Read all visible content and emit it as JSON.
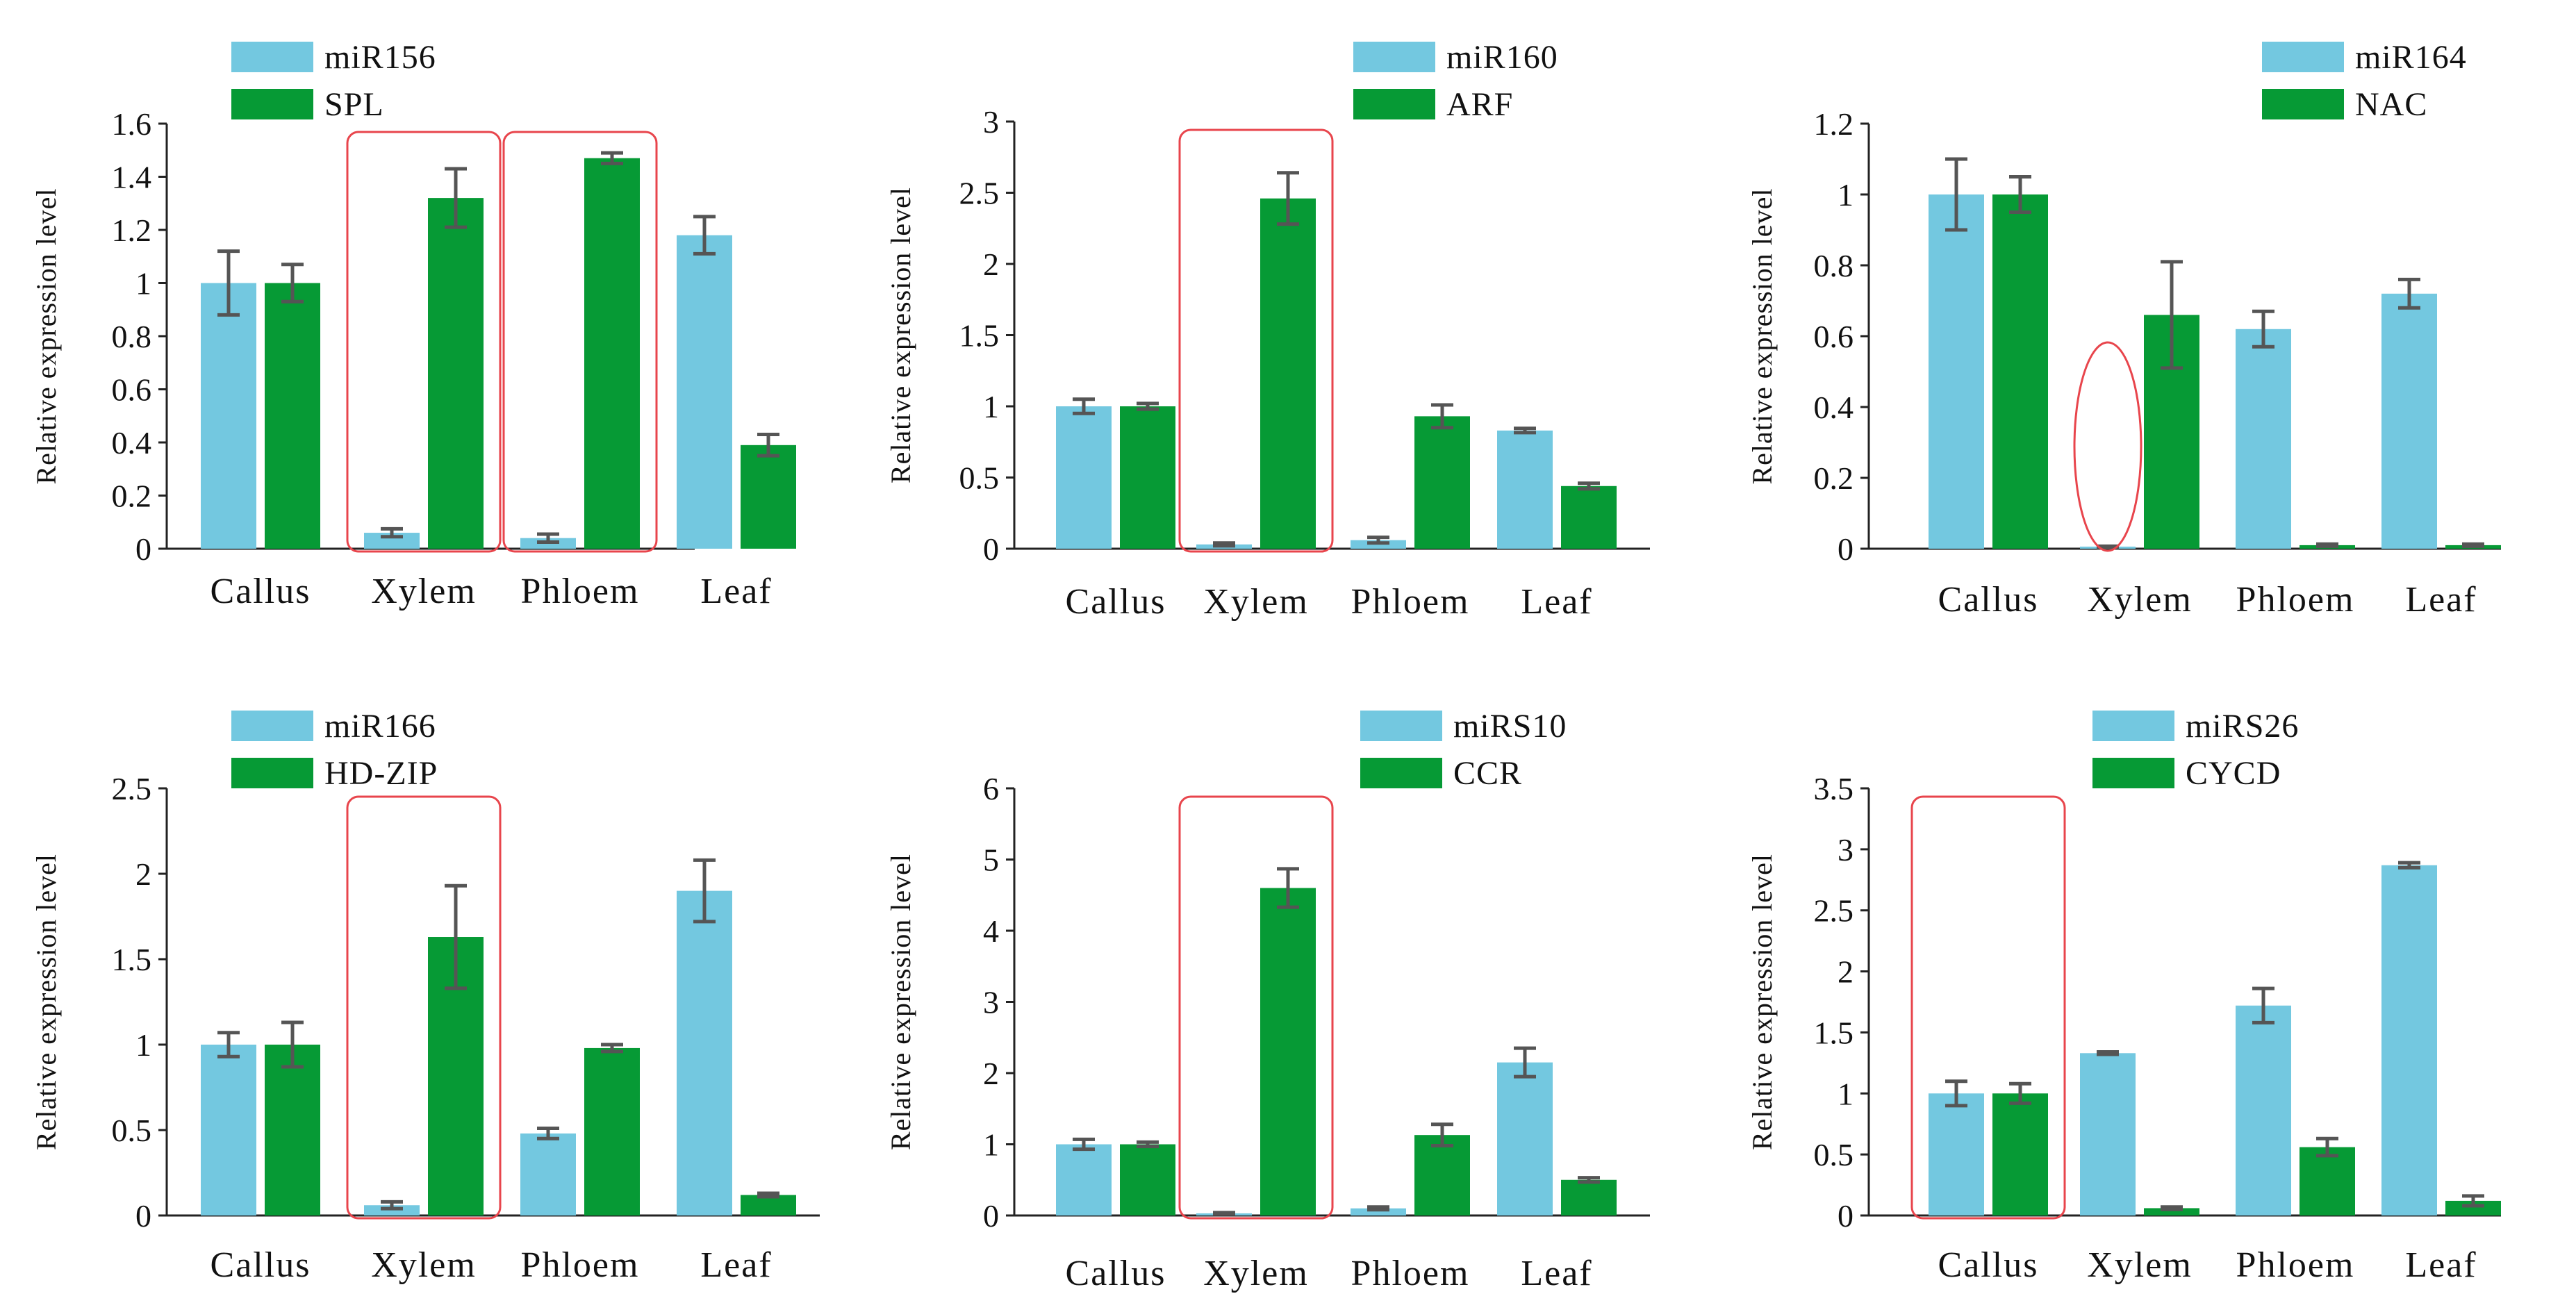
{
  "figure": {
    "description_type": "grouped bar charts with error bars (miRNA vs target gene expression)",
    "colors": {
      "mirna": "#73C8E0",
      "target": "#069A35",
      "error": "#555555",
      "highlight": "#E8454C",
      "axis": "#222222"
    }
  },
  "chart_data": [
    {
      "type": "bar",
      "id": "p1",
      "categories": [
        "Callus",
        "Xylem",
        "Phloem",
        "Leaf"
      ],
      "ylabel": "Relative expression level",
      "ylim": [
        0,
        1.6
      ],
      "yticks": [
        0,
        0.2,
        0.4,
        0.6,
        0.8,
        1,
        1.2,
        1.4,
        1.6
      ],
      "ytick_labels": [
        "0",
        "0.2",
        "0.4",
        "0.6",
        "0.8",
        "1",
        "1.2",
        "1.4",
        "1.6"
      ],
      "series": [
        {
          "name": "miR156",
          "color": "#73C8E0",
          "values": [
            1.0,
            0.06,
            0.04,
            1.18
          ],
          "errors": [
            0.12,
            0.015,
            0.015,
            0.07
          ]
        },
        {
          "name": "SPL",
          "color": "#069A35",
          "values": [
            1.0,
            1.32,
            1.47,
            0.39
          ],
          "errors": [
            0.07,
            0.11,
            0.02,
            0.04
          ]
        }
      ],
      "highlights": [
        {
          "category": "Xylem",
          "shape": "rect"
        },
        {
          "category": "Phloem",
          "shape": "rect"
        }
      ]
    },
    {
      "type": "bar",
      "id": "p2",
      "categories": [
        "Callus",
        "Xylem",
        "Phloem",
        "Leaf"
      ],
      "ylabel": "Relative expression level",
      "ylim": [
        0,
        3
      ],
      "yticks": [
        0,
        0.5,
        1,
        1.5,
        2,
        2.5,
        3
      ],
      "ytick_labels": [
        "0",
        "0.5",
        "1",
        "1.5",
        "2",
        "2.5",
        "3"
      ],
      "series": [
        {
          "name": "miR160",
          "color": "#73C8E0",
          "values": [
            1.0,
            0.03,
            0.06,
            0.83
          ],
          "errors": [
            0.05,
            0.01,
            0.02,
            0.015
          ]
        },
        {
          "name": "ARF",
          "color": "#069A35",
          "values": [
            1.0,
            2.46,
            0.93,
            0.44
          ],
          "errors": [
            0.02,
            0.18,
            0.08,
            0.02
          ]
        }
      ],
      "highlights": [
        {
          "category": "Xylem",
          "shape": "rect"
        }
      ]
    },
    {
      "type": "bar",
      "id": "p3",
      "categories": [
        "Callus",
        "Xylem",
        "Phloem",
        "Leaf"
      ],
      "ylabel": "Relative expression level",
      "ylim": [
        0,
        1.2
      ],
      "yticks": [
        0,
        0.2,
        0.4,
        0.6,
        0.8,
        1,
        1.2
      ],
      "ytick_labels": [
        "0",
        "0.2",
        "0.4",
        "0.6",
        "0.8",
        "1",
        "1.2"
      ],
      "series": [
        {
          "name": "miR164",
          "color": "#73C8E0",
          "values": [
            1.0,
            0.005,
            0.62,
            0.72
          ],
          "errors": [
            0.1,
            0.002,
            0.05,
            0.04
          ]
        },
        {
          "name": "NAC",
          "color": "#069A35",
          "values": [
            1.0,
            0.66,
            0.01,
            0.01
          ],
          "errors": [
            0.05,
            0.15,
            0.003,
            0.003
          ]
        }
      ],
      "highlights": [
        {
          "category": "Xylem",
          "shape": "ellipse",
          "target": "first"
        }
      ]
    },
    {
      "type": "bar",
      "id": "p4",
      "categories": [
        "Callus",
        "Xylem",
        "Phloem",
        "Leaf"
      ],
      "ylabel": "Relative expression level",
      "ylim": [
        0,
        2.5
      ],
      "yticks": [
        0,
        0.5,
        1,
        1.5,
        2,
        2.5
      ],
      "ytick_labels": [
        "0",
        "0.5",
        "1",
        "1.5",
        "2",
        "2.5"
      ],
      "series": [
        {
          "name": "miR166",
          "color": "#73C8E0",
          "values": [
            1.0,
            0.06,
            0.48,
            1.9
          ],
          "errors": [
            0.07,
            0.02,
            0.03,
            0.18
          ]
        },
        {
          "name": "HD-ZIP",
          "color": "#069A35",
          "values": [
            1.0,
            1.63,
            0.98,
            0.12
          ],
          "errors": [
            0.13,
            0.3,
            0.02,
            0.01
          ]
        }
      ],
      "highlights": [
        {
          "category": "Xylem",
          "shape": "rect"
        }
      ]
    },
    {
      "type": "bar",
      "id": "p5",
      "categories": [
        "Callus",
        "Xylem",
        "Phloem",
        "Leaf"
      ],
      "ylabel": "Relative expression level",
      "ylim": [
        0,
        6
      ],
      "yticks": [
        0,
        1,
        2,
        3,
        4,
        5,
        6
      ],
      "ytick_labels": [
        "0",
        "1",
        "2",
        "3",
        "4",
        "5",
        "6"
      ],
      "series": [
        {
          "name": "miRS10",
          "color": "#73C8E0",
          "values": [
            1.0,
            0.03,
            0.1,
            2.15
          ],
          "errors": [
            0.07,
            0.01,
            0.02,
            0.2
          ]
        },
        {
          "name": "CCR",
          "color": "#069A35",
          "values": [
            1.0,
            4.6,
            1.13,
            0.5
          ],
          "errors": [
            0.03,
            0.27,
            0.15,
            0.03
          ]
        }
      ],
      "highlights": [
        {
          "category": "Xylem",
          "shape": "rect"
        }
      ]
    },
    {
      "type": "bar",
      "id": "p6",
      "categories": [
        "Callus",
        "Xylem",
        "Phloem",
        "Leaf"
      ],
      "ylabel": "Relative expression level",
      "ylim": [
        0,
        3.5
      ],
      "yticks": [
        0,
        0.5,
        1,
        1.5,
        2,
        2.5,
        3,
        3.5
      ],
      "ytick_labels": [
        "0",
        "0.5",
        "1",
        "1.5",
        "2",
        "2.5",
        "3",
        "3.5"
      ],
      "series": [
        {
          "name": "miRS26",
          "color": "#73C8E0",
          "values": [
            1.0,
            1.33,
            1.72,
            2.87
          ],
          "errors": [
            0.1,
            0.01,
            0.14,
            0.02
          ]
        },
        {
          "name": "CYCD",
          "color": "#069A35",
          "values": [
            1.0,
            0.06,
            0.56,
            0.12
          ],
          "errors": [
            0.08,
            0.01,
            0.07,
            0.04
          ]
        }
      ],
      "highlights": [
        {
          "category": "Callus",
          "shape": "rect"
        }
      ]
    }
  ]
}
